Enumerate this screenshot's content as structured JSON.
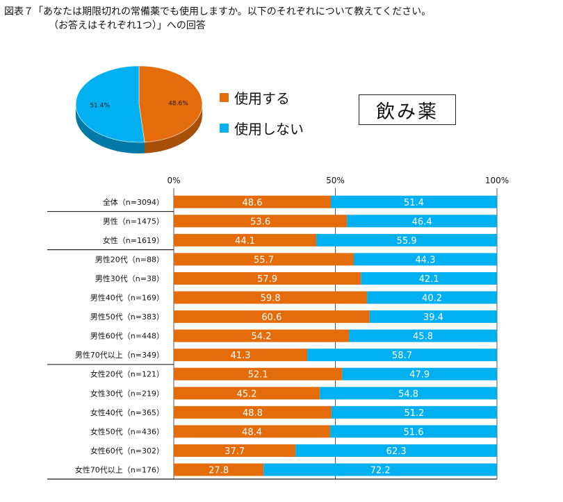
{
  "title": {
    "line1": "図表７「あなたは期限切れの常備薬でも使用しますか。以下のそれぞれについて教えてください。",
    "line2": "（お答えはそれぞれ1つ）」への回答"
  },
  "medicine_label": "飲み薬",
  "colors": {
    "use": "#e46c0a",
    "not_use": "#00b0f0",
    "use_dark": "#a84f08",
    "not_use_dark": "#0079a6"
  },
  "chart_data": [
    {
      "type": "pie",
      "title": "",
      "slices": [
        {
          "name": "使用する",
          "value": 48.6,
          "label": "48.6%"
        },
        {
          "name": "使用しない",
          "value": 51.4,
          "label": "51.4%"
        }
      ],
      "legend": [
        "使用する",
        "使用しない"
      ]
    },
    {
      "type": "bar",
      "orientation": "horizontal",
      "stacked": true,
      "x_ticks": [
        "0%",
        "50%",
        "100%"
      ],
      "xlim": [
        0,
        100
      ],
      "categories": [
        "全体（n=3094）",
        "男性（n=1475）",
        "女性（n=1619）",
        "男性20代（n=88）",
        "男性30代（n=38）",
        "男性40代（n=169）",
        "男性50代（n=383）",
        "男性60代（n=448）",
        "男性70代以上（n=349）",
        "女性20代（n=121）",
        "女性30代（n=219）",
        "女性40代（n=365）",
        "女性50代（n=436）",
        "女性60代（n=302）",
        "女性70代以上（n=176）"
      ],
      "group_separators_after": [
        0,
        2,
        8
      ],
      "series": [
        {
          "name": "使用する",
          "values": [
            "48.6",
            "53.6",
            "44.1",
            "55.7",
            "57.9",
            "59.8",
            "60.6",
            "54.2",
            "41.3",
            "52.1",
            "45.2",
            "48.8",
            "48.4",
            "37.7",
            "27.8"
          ]
        },
        {
          "name": "使用しない",
          "values": [
            "51.4",
            "46.4",
            "55.9",
            "44.3",
            "42.1",
            "40.2",
            "39.4",
            "45.8",
            "58.7",
            "47.9",
            "54.8",
            "51.2",
            "51.6",
            "62.3",
            "72.2"
          ]
        }
      ]
    }
  ]
}
